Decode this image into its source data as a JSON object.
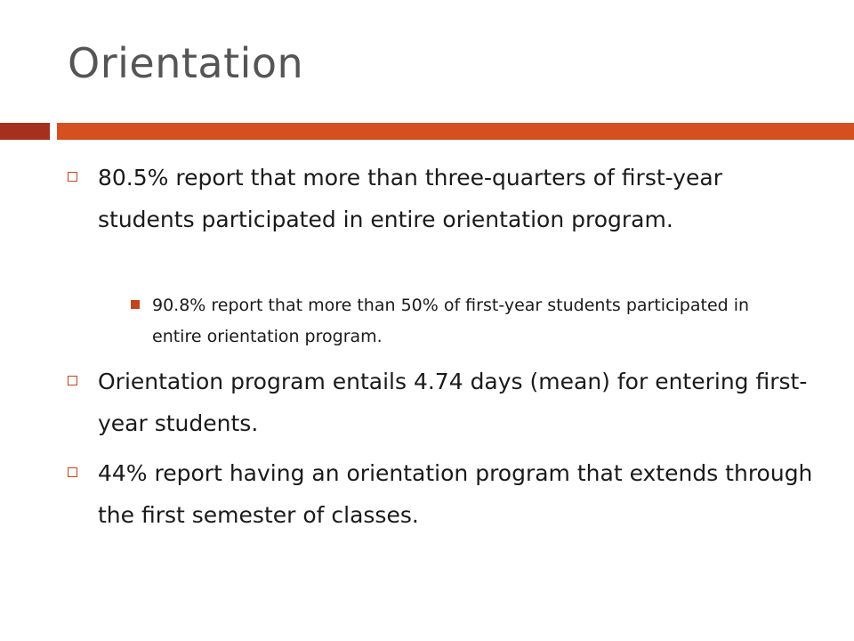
{
  "slide": {
    "title": "Orientation",
    "bullets": [
      {
        "text": "80.5% report that more than three-quarters of first-year students participated in entire orientation program.",
        "sub_bullets": [
          {
            "text": "90.8% report that more than 50% of first-year students participated in entire orientation program."
          }
        ]
      },
      {
        "text": "Orientation program entails 4.74 days (mean) for entering first-year students."
      },
      {
        "text": "44% report having an orientation program that extends through the first semester of classes."
      }
    ],
    "colors": {
      "title": "#555555",
      "rule_dark": "#a5301e",
      "rule_main": "#d4501f",
      "bullet_accent": "#c0451c"
    }
  }
}
